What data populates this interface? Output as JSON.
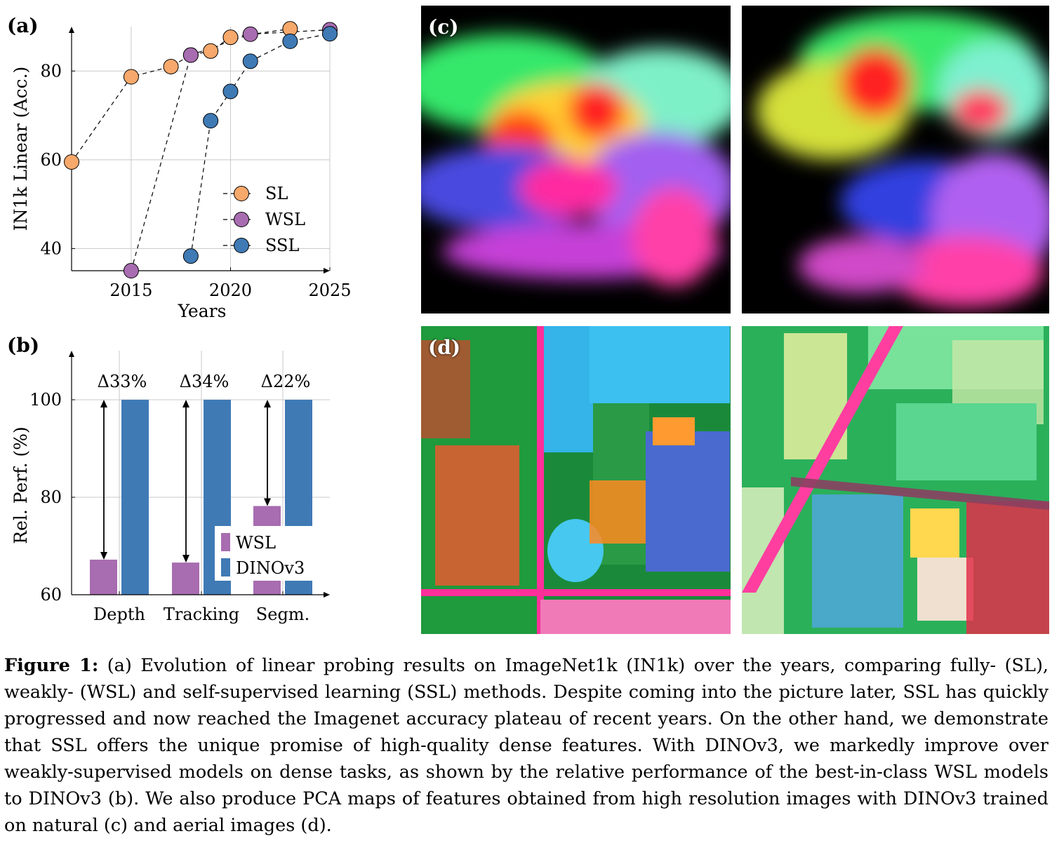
{
  "panel_labels": {
    "a": "(a)",
    "b": "(b)",
    "c": "(c)",
    "d": "(d)"
  },
  "chart_data": [
    {
      "id": "a",
      "type": "scatter",
      "xlabel": "Years",
      "ylabel": "IN1k Linear (Acc.)",
      "xlim": [
        2012,
        2025
      ],
      "ylim": [
        35,
        90
      ],
      "xticks": [
        2015,
        2020,
        2025
      ],
      "yticks": [
        40,
        60,
        80
      ],
      "grid": true,
      "legend_position": "bottom-right",
      "series": [
        {
          "name": "SL",
          "color": "#f7a86b",
          "x": [
            2012,
            2015,
            2017,
            2018,
            2019,
            2020,
            2023
          ],
          "y": [
            59.5,
            78.7,
            81.0,
            83.6,
            84.5,
            87.6,
            89.5
          ]
        },
        {
          "name": "WSL",
          "color": "#a86cb0",
          "x": [
            2015,
            2018,
            2021,
            2025
          ],
          "y": [
            35.0,
            83.6,
            88.3,
            89.3
          ]
        },
        {
          "name": "SSL",
          "color": "#3f7ab5",
          "x": [
            2018,
            2019,
            2020,
            2021,
            2023,
            2025
          ],
          "y": [
            38.3,
            68.8,
            75.4,
            82.2,
            86.7,
            88.4
          ]
        }
      ]
    },
    {
      "id": "b",
      "type": "bar",
      "ylabel": "Rel. Perf. (%)",
      "categories": [
        "Depth",
        "Tracking",
        "Segm."
      ],
      "ylim": [
        60,
        100
      ],
      "yticks": [
        60,
        80,
        100
      ],
      "grid": true,
      "legend_position": "bottom-right",
      "series": [
        {
          "name": "WSL",
          "color": "#a86cb0",
          "values": [
            67.2,
            66.6,
            78.2
          ]
        },
        {
          "name": "DINOv3",
          "color": "#3f7ab5",
          "values": [
            100,
            100,
            100
          ]
        }
      ],
      "annotations": [
        "Δ33%",
        "Δ34%",
        "Δ22%"
      ]
    }
  ],
  "caption": {
    "head": "Figure 1:",
    "text": "(a) Evolution of linear probing results on ImageNet1k (IN1k) over the years, comparing fully- (SL), weakly- (WSL) and self-supervised learning (SSL) methods. Despite coming into the picture later, SSL has quickly progressed and now reached the Imagenet accuracy plateau of recent years. On the other hand, we demonstrate that SSL offers the unique promise of high-quality dense features. With DINOv3, we markedly improve over weakly-supervised models on dense tasks, as shown by the relative performance of the best-in-class WSL models to DINOv3 (b). We also produce PCA maps of features obtained from high resolution images with DINOv3 trained on natural (c) and aerial images (d)."
  }
}
